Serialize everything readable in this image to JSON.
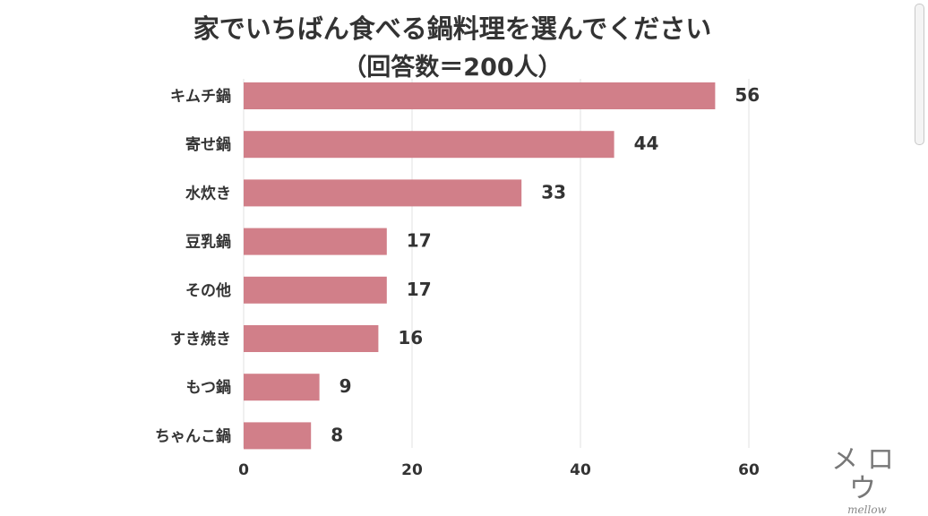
{
  "chart_data": {
    "type": "bar",
    "orientation": "horizontal",
    "title_lines": [
      "家でいちばん食べる鍋料理を選んでください",
      "（回答数＝200人）"
    ],
    "categories": [
      "キムチ鍋",
      "寄せ鍋",
      "水炊き",
      "豆乳鍋",
      "その他",
      "すき焼き",
      "もつ鍋",
      "ちゃんこ鍋"
    ],
    "values": [
      56,
      44,
      33,
      17,
      17,
      16,
      9,
      8
    ],
    "x_ticks": [
      0,
      20,
      40,
      60
    ],
    "xlim": [
      0,
      60
    ],
    "grid": true,
    "bar_color": "#d17f89"
  },
  "logo": {
    "main": "メロウ",
    "sub": "mellow"
  }
}
